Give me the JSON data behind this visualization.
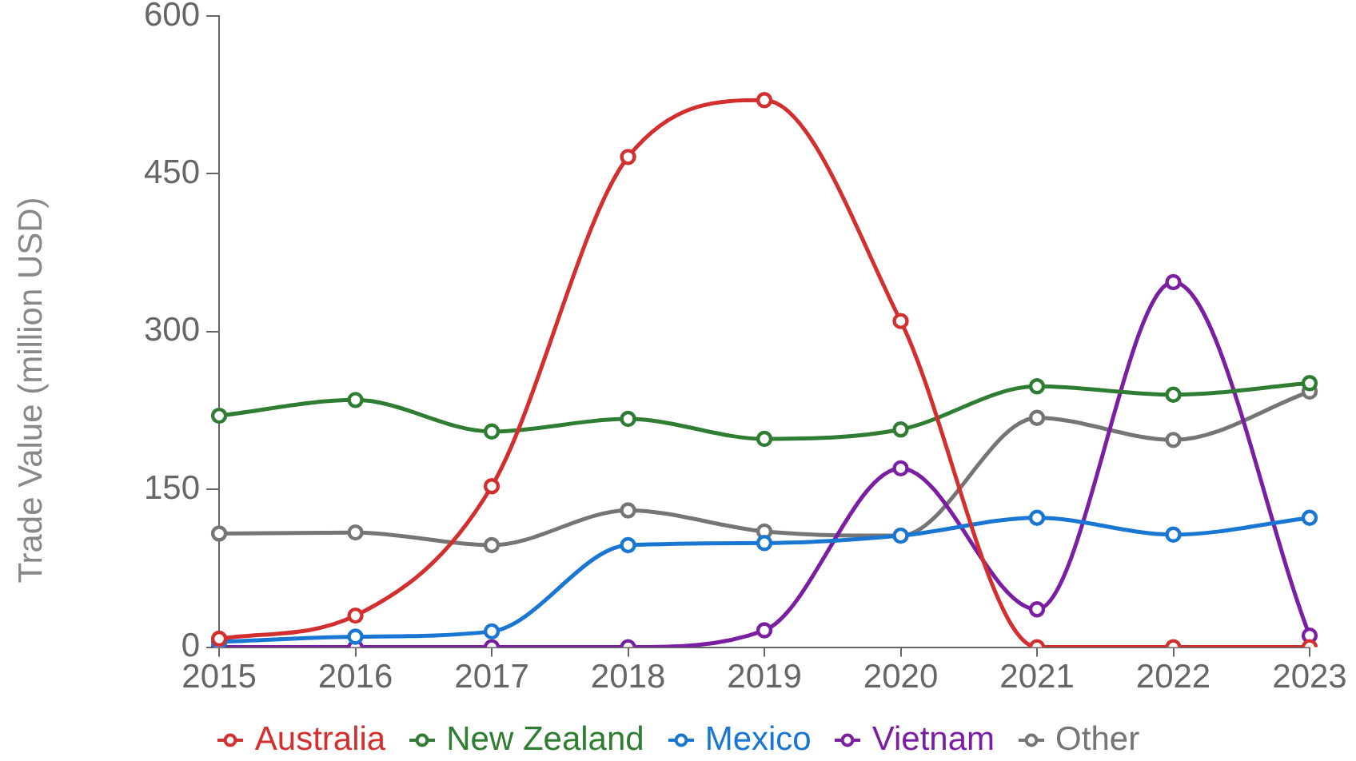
{
  "chart_data": {
    "type": "line",
    "ylabel": "Trade Value (million USD)",
    "categories": [
      "2015",
      "2016",
      "2017",
      "2018",
      "2019",
      "2020",
      "2021",
      "2022",
      "2023"
    ],
    "series": [
      {
        "name": "Australia",
        "color": "#d32f2f",
        "values": [
          8,
          30,
          153,
          466,
          520,
          310,
          0,
          0,
          0
        ]
      },
      {
        "name": "New Zealand",
        "color": "#2e7d32",
        "values": [
          220,
          235,
          205,
          217,
          198,
          207,
          248,
          240,
          251
        ]
      },
      {
        "name": "Mexico",
        "color": "#1976d2",
        "values": [
          5,
          10,
          15,
          97,
          99,
          106,
          123,
          107,
          123
        ]
      },
      {
        "name": "Vietnam",
        "color": "#7b1fa2",
        "values": [
          0,
          0,
          0,
          0,
          16,
          170,
          36,
          347,
          11
        ]
      },
      {
        "name": "Other",
        "color": "#757575",
        "values": [
          108,
          109,
          97,
          130,
          110,
          106,
          218,
          197,
          243
        ]
      }
    ],
    "ylim": [
      0,
      600
    ],
    "yticks": [
      0,
      150,
      300,
      450,
      600
    ],
    "grid": false,
    "legend": "bottom",
    "marker": "circle",
    "line_style": "solid"
  }
}
